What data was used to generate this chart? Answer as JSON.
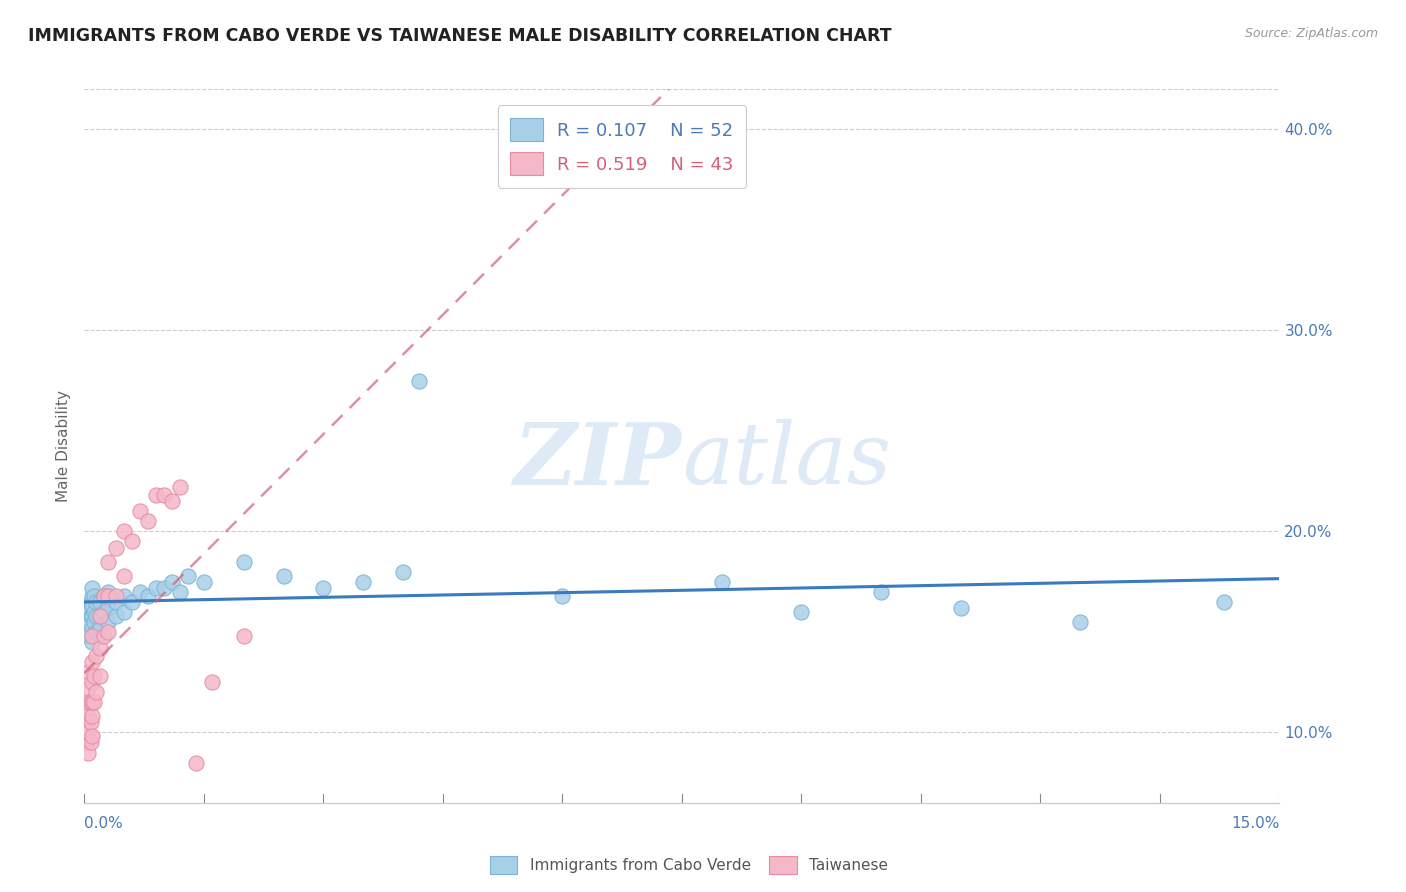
{
  "title": "IMMIGRANTS FROM CABO VERDE VS TAIWANESE MALE DISABILITY CORRELATION CHART",
  "source_text": "Source: ZipAtlas.com",
  "ylabel": "Male Disability",
  "xlim": [
    0.0,
    0.15
  ],
  "ylim": [
    0.065,
    0.42
  ],
  "yticks": [
    0.1,
    0.2,
    0.3,
    0.4
  ],
  "ytick_labels": [
    "10.0%",
    "20.0%",
    "30.0%",
    "40.0%"
  ],
  "legend1_R": "0.107",
  "legend1_N": "52",
  "legend2_R": "0.519",
  "legend2_N": "43",
  "cabo_verde_color": "#a8cfe8",
  "taiwanese_color": "#f4b8c8",
  "cabo_verde_edge": "#7ab3d4",
  "taiwanese_edge": "#e88aa0",
  "trend_cabo_color": "#3a7abf",
  "trend_taiwanese_color": "#d4607a",
  "watermark_color": "#d8e8f0",
  "cabo_verde_x": [
    0.0005,
    0.0005,
    0.0005,
    0.0008,
    0.0008,
    0.001,
    0.001,
    0.001,
    0.001,
    0.001,
    0.001,
    0.0012,
    0.0012,
    0.0012,
    0.0015,
    0.0015,
    0.0015,
    0.002,
    0.002,
    0.002,
    0.002,
    0.0025,
    0.0025,
    0.003,
    0.003,
    0.003,
    0.004,
    0.004,
    0.005,
    0.005,
    0.006,
    0.007,
    0.008,
    0.009,
    0.01,
    0.011,
    0.012,
    0.013,
    0.015,
    0.02,
    0.025,
    0.03,
    0.035,
    0.04,
    0.042,
    0.06,
    0.08,
    0.09,
    0.1,
    0.11,
    0.125,
    0.143
  ],
  "cabo_verde_y": [
    0.155,
    0.162,
    0.148,
    0.158,
    0.165,
    0.152,
    0.158,
    0.163,
    0.168,
    0.172,
    0.145,
    0.155,
    0.16,
    0.168,
    0.15,
    0.158,
    0.165,
    0.148,
    0.152,
    0.158,
    0.165,
    0.16,
    0.168,
    0.155,
    0.162,
    0.17,
    0.158,
    0.165,
    0.16,
    0.168,
    0.165,
    0.17,
    0.168,
    0.172,
    0.172,
    0.175,
    0.17,
    0.178,
    0.175,
    0.185,
    0.178,
    0.172,
    0.175,
    0.18,
    0.275,
    0.168,
    0.175,
    0.16,
    0.17,
    0.162,
    0.155,
    0.165
  ],
  "taiwanese_x": [
    0.0003,
    0.0003,
    0.0005,
    0.0005,
    0.0005,
    0.0005,
    0.0005,
    0.0005,
    0.0008,
    0.0008,
    0.0008,
    0.001,
    0.001,
    0.001,
    0.001,
    0.001,
    0.001,
    0.0012,
    0.0012,
    0.0015,
    0.0015,
    0.002,
    0.002,
    0.002,
    0.0025,
    0.0025,
    0.003,
    0.003,
    0.003,
    0.004,
    0.004,
    0.005,
    0.005,
    0.006,
    0.007,
    0.008,
    0.009,
    0.01,
    0.011,
    0.012,
    0.014,
    0.016,
    0.02
  ],
  "taiwanese_y": [
    0.095,
    0.105,
    0.09,
    0.1,
    0.108,
    0.115,
    0.122,
    0.13,
    0.095,
    0.105,
    0.115,
    0.098,
    0.108,
    0.115,
    0.125,
    0.135,
    0.148,
    0.115,
    0.128,
    0.12,
    0.138,
    0.128,
    0.142,
    0.158,
    0.148,
    0.168,
    0.15,
    0.168,
    0.185,
    0.168,
    0.192,
    0.178,
    0.2,
    0.195,
    0.21,
    0.205,
    0.218,
    0.218,
    0.215,
    0.222,
    0.085,
    0.125,
    0.148
  ]
}
